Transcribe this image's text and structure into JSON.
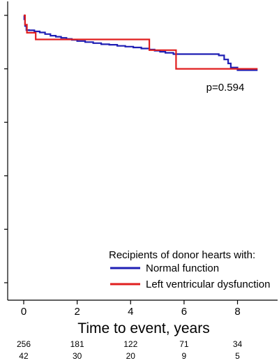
{
  "chart_data": {
    "type": "line",
    "title": "",
    "xlabel": "Time to event, years",
    "ylabel": "",
    "xlim": [
      -0.6,
      9.5
    ],
    "ylim": [
      0,
      1
    ],
    "x_ticks": [
      0,
      2,
      4,
      6,
      8
    ],
    "y_ticks": [
      0,
      0.2,
      0.4,
      0.6,
      0.8,
      1.0
    ],
    "y_tick_labels_visible": false,
    "grid": false,
    "annotation": "p=0.594",
    "legend": {
      "title": "Recipients of donor hearts with:",
      "placement": "bottom-right"
    },
    "series": [
      {
        "name": "Normal function",
        "color": "#1f1fb4",
        "step": true,
        "x": [
          0,
          0.02,
          0.05,
          0.1,
          0.2,
          0.4,
          0.6,
          0.8,
          1.0,
          1.2,
          1.4,
          1.6,
          1.8,
          2.0,
          2.3,
          2.6,
          2.9,
          3.2,
          3.5,
          3.8,
          4.1,
          4.4,
          4.7,
          4.9,
          5.1,
          5.3,
          5.6,
          6.0,
          6.5,
          7.0,
          7.3,
          7.5,
          7.65,
          7.75,
          8.0,
          8.3,
          8.75
        ],
        "y": [
          1.0,
          0.985,
          0.96,
          0.945,
          0.944,
          0.94,
          0.936,
          0.93,
          0.924,
          0.92,
          0.916,
          0.912,
          0.908,
          0.904,
          0.9,
          0.896,
          0.892,
          0.89,
          0.886,
          0.883,
          0.88,
          0.876,
          0.872,
          0.868,
          0.864,
          0.86,
          0.855,
          0.855,
          0.855,
          0.855,
          0.85,
          0.835,
          0.82,
          0.805,
          0.795,
          0.795,
          0.795
        ]
      },
      {
        "name": "Left ventricular dysfunction",
        "color": "#e01f1f",
        "step": true,
        "x": [
          0,
          0.05,
          0.12,
          0.45,
          2.5,
          4.6,
          4.7,
          5.0,
          5.7,
          6.0,
          6.8,
          7.5,
          8.75
        ],
        "y": [
          1.0,
          0.965,
          0.935,
          0.91,
          0.91,
          0.91,
          0.87,
          0.87,
          0.8,
          0.8,
          0.8,
          0.8,
          0.8
        ]
      }
    ],
    "risk_table": [
      [
        "256",
        "181",
        "122",
        "71",
        "34"
      ],
      [
        "42",
        "30",
        "20",
        "9",
        "5"
      ]
    ]
  }
}
